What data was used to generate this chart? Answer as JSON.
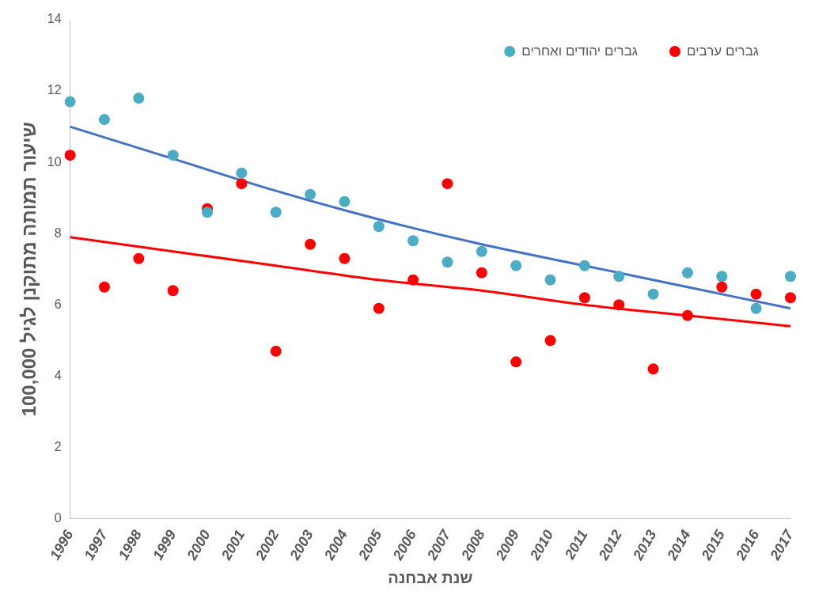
{
  "chart_data": {
    "type": "scatter",
    "xlabel": "שנת אבחנה",
    "ylabel": "שיעור תמותה מתוקנן לגיל 100,000",
    "categories": [
      "1996",
      "1997",
      "1998",
      "1999",
      "2000",
      "2001",
      "2002",
      "2003",
      "2004",
      "2005",
      "2006",
      "2007",
      "2008",
      "2009",
      "2010",
      "2011",
      "2012",
      "2013",
      "2014",
      "2015",
      "2016",
      "2017"
    ],
    "series": [
      {
        "name": "גברים יהודים ואחרים",
        "color": "#4bacc6",
        "values": [
          11.7,
          11.2,
          11.8,
          10.2,
          8.6,
          9.7,
          8.6,
          9.1,
          8.9,
          8.2,
          7.8,
          7.2,
          7.5,
          7.1,
          6.7,
          7.1,
          6.8,
          6.3,
          6.9,
          6.8,
          5.9,
          6.8
        ]
      },
      {
        "name": "גברים ערבים",
        "color": "#ff0000",
        "values": [
          10.2,
          6.5,
          7.3,
          6.4,
          8.7,
          9.4,
          4.7,
          7.7,
          7.3,
          5.9,
          6.7,
          9.4,
          6.9,
          4.4,
          5.0,
          6.2,
          6.0,
          4.2,
          5.7,
          6.5,
          6.3,
          6.2
        ]
      },
      {
        "type": "line",
        "color": "#4472c4",
        "marker": "none",
        "values": [
          11.0,
          null,
          null,
          10.1,
          null,
          null,
          9.2,
          null,
          null,
          8.4,
          null,
          null,
          7.7,
          null,
          null,
          7.1,
          null,
          null,
          6.5,
          null,
          null,
          5.9
        ]
      },
      {
        "type": "line",
        "color": "#ff0000",
        "marker": "none",
        "values": [
          7.9,
          null,
          null,
          7.5,
          null,
          null,
          7.1,
          null,
          null,
          6.7,
          null,
          null,
          6.4,
          null,
          null,
          6.0,
          null,
          null,
          5.7,
          null,
          null,
          5.4
        ]
      }
    ],
    "ylim": [
      0,
      14
    ],
    "yticks": [
      0,
      2,
      4,
      6,
      8,
      10,
      12,
      14
    ],
    "grid": false,
    "legend": "top right",
    "marker": "circle"
  }
}
